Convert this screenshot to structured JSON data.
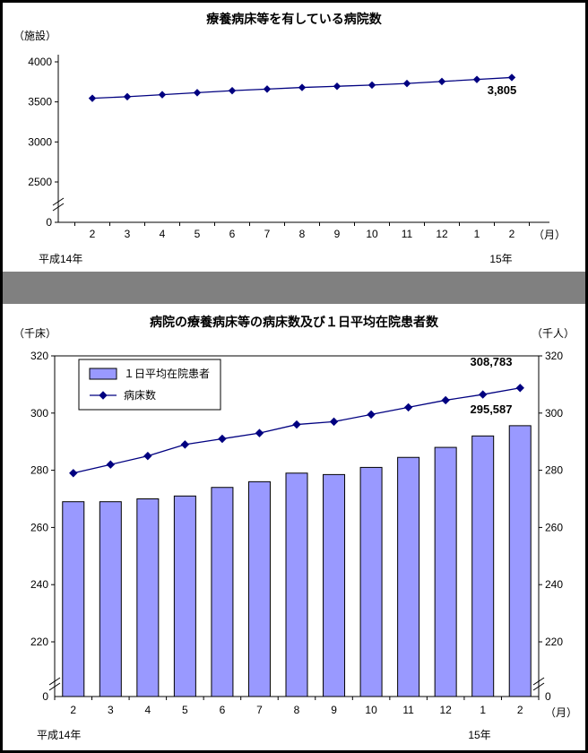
{
  "page": {
    "background": "#ffffff",
    "border_color": "#000000",
    "separator_color": "#808080"
  },
  "chart_data": [
    {
      "type": "line",
      "title": "療養病床等を有している病院数",
      "unit_left": "（施設）",
      "x_unit": "（月）",
      "era_left": "平成14年",
      "era_right": "15年",
      "categories": [
        "2",
        "3",
        "4",
        "5",
        "6",
        "7",
        "8",
        "9",
        "10",
        "11",
        "12",
        "1",
        "2"
      ],
      "y_ticks": [
        2500,
        3000,
        3500,
        4000
      ],
      "y_zero": "0",
      "ylim": [
        2500,
        4000
      ],
      "axis_break": true,
      "grid": false,
      "series": [
        {
          "name": "病院数",
          "type": "line",
          "color": "#000080",
          "values": [
            3545,
            3565,
            3590,
            3615,
            3640,
            3660,
            3680,
            3695,
            3710,
            3730,
            3755,
            3780,
            3805
          ]
        }
      ],
      "annotation": {
        "text": "3,805"
      }
    },
    {
      "type": "bar-line",
      "title": "病院の療養病床等の病床数及び１日平均在院患者数",
      "unit_left": "（千床）",
      "unit_right": "（千人）",
      "x_unit": "（月）",
      "era_left": "平成14年",
      "era_right": "15年",
      "categories": [
        "2",
        "3",
        "4",
        "5",
        "6",
        "7",
        "8",
        "9",
        "10",
        "11",
        "12",
        "1",
        "2"
      ],
      "y_ticks": [
        220,
        240,
        260,
        280,
        300,
        320
      ],
      "y_zero": "0",
      "ylim": [
        220,
        320
      ],
      "axis_break": true,
      "grid": false,
      "legend_position": "top-left",
      "legend": [
        {
          "label": "１日平均在院患者",
          "swatch": "bar"
        },
        {
          "label": "病床数",
          "swatch": "line"
        }
      ],
      "series": [
        {
          "name": "１日平均在院患者",
          "type": "bar",
          "color": "#9999ff",
          "border_color": "#000000",
          "values": [
            269,
            269,
            270,
            271,
            274,
            276,
            279,
            278.5,
            281,
            284.5,
            288,
            292,
            295.587
          ]
        },
        {
          "name": "病床数",
          "type": "line",
          "color": "#000080",
          "values": [
            279,
            282,
            285,
            289,
            291,
            293,
            296,
            297,
            299.5,
            302,
            304.5,
            306.5,
            308.783
          ]
        }
      ],
      "annotations": [
        {
          "text": "308,783",
          "series": "病床数"
        },
        {
          "text": "295,587",
          "series": "１日平均在院患者"
        }
      ]
    }
  ]
}
